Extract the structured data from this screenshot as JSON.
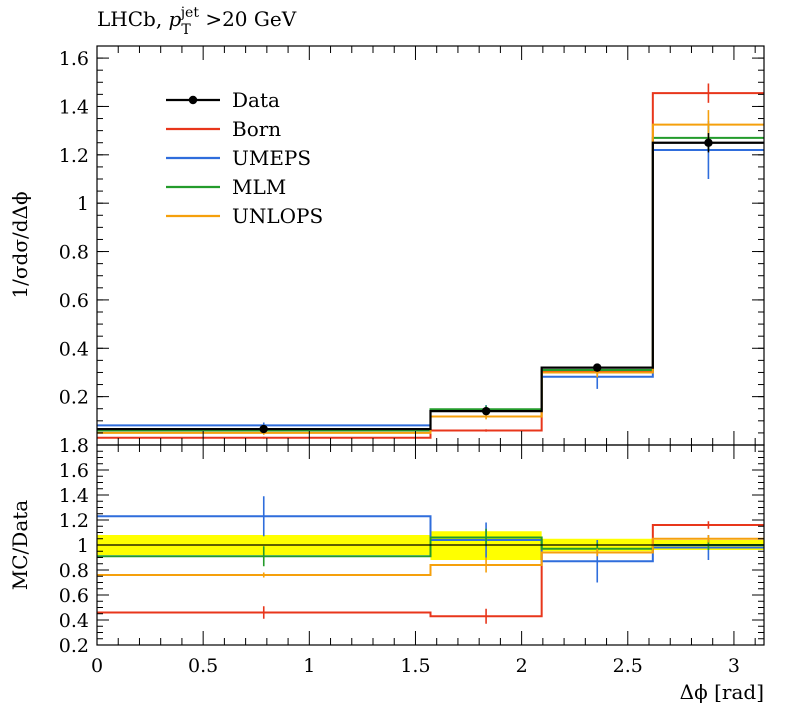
{
  "chart_data": [
    {
      "type": "line",
      "panel": "main",
      "title": "LHCb, p_T^jet >20 GeV",
      "title_parts": {
        "prefix": "LHCb, ",
        "symbol": "p",
        "sub": "T",
        "sup": "jet",
        "suffix": " >20 GeV"
      },
      "ylabel": "1/σdσ/dΔϕ",
      "xlim": [
        0,
        3.1416
      ],
      "ylim": [
        0,
        1.65
      ],
      "yticks": [
        0.2,
        0.4,
        0.6,
        0.8,
        1,
        1.2,
        1.4,
        1.6
      ],
      "ytick_labels": [
        "0.2",
        "0.4",
        "0.6",
        "0.8",
        "1",
        "1.2",
        "1.4",
        "1.6"
      ],
      "bin_edges": [
        0,
        1.5708,
        2.0944,
        2.618,
        3.1416
      ],
      "legend_position": "top-left",
      "data": {
        "name": "Data",
        "color": "#000000",
        "x": [
          0.785,
          1.833,
          2.356,
          2.88
        ],
        "values": [
          0.066,
          0.14,
          0.32,
          1.25
        ],
        "errors": [
          0.008,
          0.01,
          0.015,
          0.04
        ]
      },
      "series": [
        {
          "name": "Born",
          "color": "#e8361b",
          "values": [
            0.03,
            0.06,
            0.302,
            1.455
          ],
          "errors": [
            0.004,
            0.005,
            0.012,
            0.04
          ]
        },
        {
          "name": "UMEPS",
          "color": "#2f6ddc",
          "values": [
            0.081,
            0.145,
            0.282,
            1.22
          ],
          "errors": [
            0.012,
            0.02,
            0.05,
            0.12
          ]
        },
        {
          "name": "MLM",
          "color": "#239b2b",
          "values": [
            0.06,
            0.148,
            0.31,
            1.27
          ],
          "errors": [
            0.01,
            0.015,
            0.02,
            0.05
          ]
        },
        {
          "name": "UNLOPS",
          "color": "#f5a00c",
          "values": [
            0.05,
            0.118,
            0.3,
            1.325
          ],
          "errors": [
            0.008,
            0.012,
            0.02,
            0.06
          ]
        }
      ]
    },
    {
      "type": "line",
      "panel": "ratio",
      "ylabel": "MC/Data",
      "xlabel": "Δϕ [rad]",
      "xlim": [
        0,
        3.1416
      ],
      "ylim": [
        0.2,
        1.8
      ],
      "yticks": [
        0.2,
        0.4,
        0.6,
        0.8,
        1,
        1.2,
        1.4,
        1.6,
        1.8
      ],
      "ytick_labels": [
        "0.2",
        "0.4",
        "0.6",
        "0.8",
        "1",
        "1.2",
        "1.4",
        "1.6",
        "1.8"
      ],
      "xticks": [
        0,
        0.5,
        1,
        1.5,
        2,
        2.5,
        3
      ],
      "xtick_labels": [
        "0",
        "0.5",
        "1",
        "1.5",
        "2",
        "2.5",
        "3"
      ],
      "bin_edges": [
        0,
        1.5708,
        2.0944,
        2.618,
        3.1416
      ],
      "band": {
        "color": "#ffff00",
        "low": [
          0.92,
          0.88,
          0.95,
          0.96
        ],
        "high": [
          1.08,
          1.11,
          1.05,
          1.04
        ]
      },
      "series": [
        {
          "name": "Born",
          "color": "#e8361b",
          "values": [
            0.46,
            0.43,
            0.94,
            1.16
          ],
          "errors": [
            0.05,
            0.06,
            0.03,
            0.03
          ]
        },
        {
          "name": "UMEPS",
          "color": "#2f6ddc",
          "values": [
            1.23,
            1.04,
            0.87,
            0.98
          ],
          "errors": [
            0.16,
            0.14,
            0.17,
            0.1
          ]
        },
        {
          "name": "MLM",
          "color": "#239b2b",
          "values": [
            0.91,
            1.06,
            0.97,
            1.0
          ],
          "errors": [
            0.08,
            0.07,
            0.05,
            0.04
          ]
        },
        {
          "name": "UNLOPS",
          "color": "#f5a00c",
          "values": [
            0.76,
            0.84,
            0.94,
            1.05
          ],
          "errors": [
            0.02,
            0.06,
            0.03,
            0.03
          ]
        }
      ]
    }
  ]
}
